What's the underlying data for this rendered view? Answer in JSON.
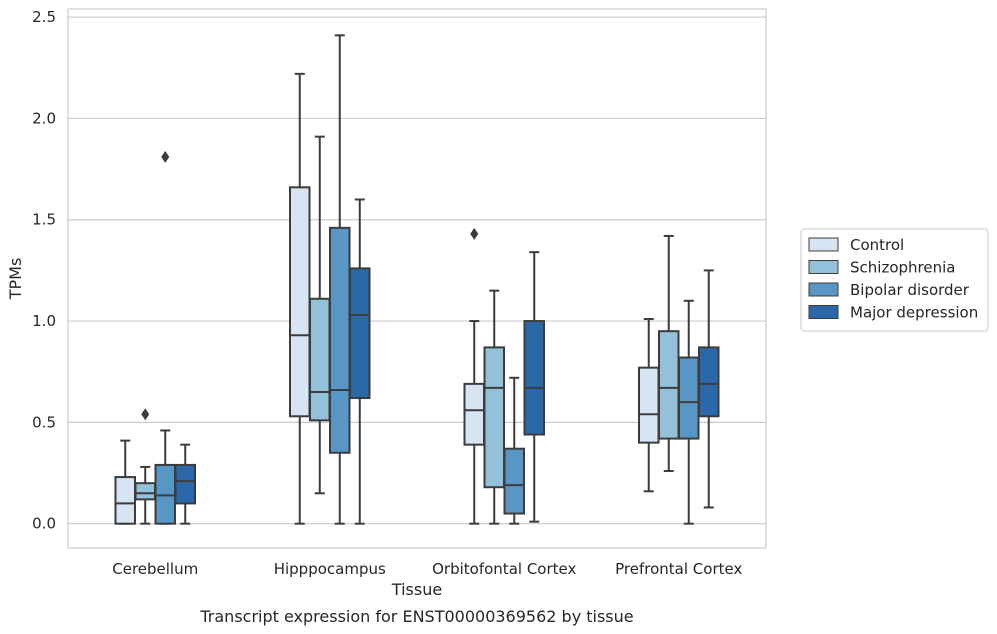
{
  "chart_data": {
    "type": "box",
    "title": "",
    "caption": "Transcript expression for ENST00000369562 by tissue",
    "xlabel": "Tissue",
    "ylabel": "TPMs",
    "ylim": [
      -0.12,
      2.54
    ],
    "yticks": [
      "0.0",
      "0.5",
      "1.0",
      "1.5",
      "2.0",
      "2.5"
    ],
    "grid": "horizontal",
    "legend_position": "right",
    "categories": [
      "Cerebellum",
      "Hipppocampus",
      "Orbitofontal Cortex",
      "Prefrontal Cortex"
    ],
    "series": [
      {
        "name": "Control",
        "color": "#d6e4f3",
        "boxes": [
          {
            "whislo": 0.0,
            "q1": 0.0,
            "med": 0.1,
            "q3": 0.23,
            "whishi": 0.41,
            "fliers": []
          },
          {
            "whislo": 0.0,
            "q1": 0.53,
            "med": 0.93,
            "q3": 1.66,
            "whishi": 2.22,
            "fliers": []
          },
          {
            "whislo": 0.0,
            "q1": 0.39,
            "med": 0.56,
            "q3": 0.69,
            "whishi": 1.0,
            "fliers": [
              1.43
            ]
          },
          {
            "whislo": 0.16,
            "q1": 0.4,
            "med": 0.54,
            "q3": 0.77,
            "whishi": 1.01,
            "fliers": []
          }
        ]
      },
      {
        "name": "Schizophrenia",
        "color": "#94c1da",
        "boxes": [
          {
            "whislo": 0.0,
            "q1": 0.12,
            "med": 0.15,
            "q3": 0.2,
            "whishi": 0.28,
            "fliers": [
              0.54
            ]
          },
          {
            "whislo": 0.15,
            "q1": 0.51,
            "med": 0.65,
            "q3": 1.11,
            "whishi": 1.91,
            "fliers": []
          },
          {
            "whislo": 0.0,
            "q1": 0.18,
            "med": 0.67,
            "q3": 0.87,
            "whishi": 1.15,
            "fliers": []
          },
          {
            "whislo": 0.26,
            "q1": 0.42,
            "med": 0.67,
            "q3": 0.95,
            "whishi": 1.42,
            "fliers": []
          }
        ]
      },
      {
        "name": "Bipolar disorder",
        "color": "#5796c5",
        "boxes": [
          {
            "whislo": 0.0,
            "q1": 0.0,
            "med": 0.14,
            "q3": 0.29,
            "whishi": 0.46,
            "fliers": [
              1.81
            ]
          },
          {
            "whislo": 0.0,
            "q1": 0.35,
            "med": 0.66,
            "q3": 1.46,
            "whishi": 2.41,
            "fliers": []
          },
          {
            "whislo": 0.0,
            "q1": 0.05,
            "med": 0.19,
            "q3": 0.37,
            "whishi": 0.72,
            "fliers": []
          },
          {
            "whislo": 0.0,
            "q1": 0.42,
            "med": 0.6,
            "q3": 0.82,
            "whishi": 1.1,
            "fliers": []
          }
        ]
      },
      {
        "name": "Major depression",
        "color": "#2b68aa",
        "boxes": [
          {
            "whislo": 0.0,
            "q1": 0.1,
            "med": 0.21,
            "q3": 0.29,
            "whishi": 0.39,
            "fliers": []
          },
          {
            "whislo": 0.0,
            "q1": 0.62,
            "med": 1.03,
            "q3": 1.26,
            "whishi": 1.6,
            "fliers": []
          },
          {
            "whislo": 0.01,
            "q1": 0.44,
            "med": 0.67,
            "q3": 1.0,
            "whishi": 1.34,
            "fliers": []
          },
          {
            "whislo": 0.08,
            "q1": 0.53,
            "med": 0.69,
            "q3": 0.87,
            "whishi": 1.25,
            "fliers": []
          }
        ]
      }
    ]
  }
}
